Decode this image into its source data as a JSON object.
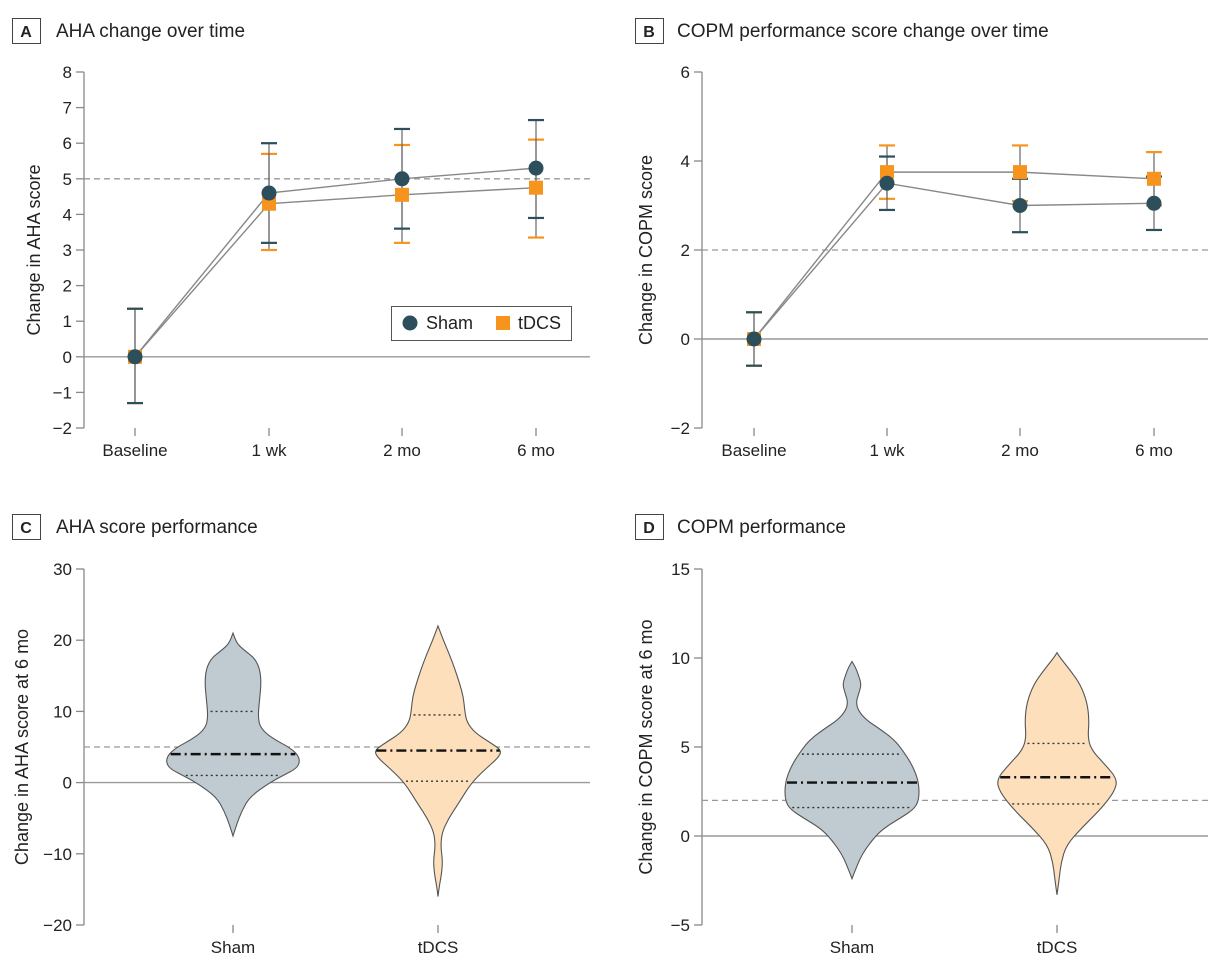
{
  "colors": {
    "sham": "#2d4e5b",
    "tdcs": "#f7941d",
    "sham_violin": "#c0cbd1",
    "tdcs_violin": "#fde0bb",
    "axis": "#888888",
    "line": "#888888"
  },
  "chart_data": [
    {
      "id": "A",
      "letter": "A",
      "title": "AHA change over time",
      "type": "line",
      "ylabel": "Change in AHA score",
      "categories": [
        "Baseline",
        "1 wk",
        "2 mo",
        "6 mo"
      ],
      "ylim": [
        -2,
        8
      ],
      "yticks": [
        -2,
        -1,
        0,
        1,
        2,
        3,
        4,
        5,
        6,
        7,
        8
      ],
      "reference_line": 5,
      "legend": {
        "position": "bottom-right",
        "items": [
          "Sham",
          "tDCS"
        ]
      },
      "series": [
        {
          "name": "Sham",
          "values": [
            0,
            4.6,
            5.0,
            5.3
          ],
          "lower": [
            -1.3,
            3.2,
            3.6,
            3.9
          ],
          "upper": [
            1.35,
            6.0,
            6.4,
            6.65
          ]
        },
        {
          "name": "tDCS",
          "values": [
            0,
            4.3,
            4.55,
            4.75
          ],
          "lower": [
            -1.3,
            3.0,
            3.2,
            3.35
          ],
          "upper": [
            1.35,
            5.7,
            5.95,
            6.1
          ]
        }
      ]
    },
    {
      "id": "B",
      "letter": "B",
      "title": "COPM performance score change over time",
      "type": "line",
      "ylabel": "Change in COPM score",
      "categories": [
        "Baseline",
        "1 wk",
        "2 mo",
        "6 mo"
      ],
      "ylim": [
        -2,
        6
      ],
      "yticks": [
        -2,
        0,
        2,
        4,
        6
      ],
      "reference_line": 2,
      "series": [
        {
          "name": "Sham",
          "values": [
            0,
            3.5,
            3.0,
            3.05
          ],
          "lower": [
            -0.6,
            2.9,
            2.4,
            2.45
          ],
          "upper": [
            0.6,
            4.1,
            3.6,
            3.65
          ]
        },
        {
          "name": "tDCS",
          "values": [
            0,
            3.75,
            3.75,
            3.6
          ],
          "lower": [
            -0.6,
            3.15,
            3.1,
            3.0
          ],
          "upper": [
            0.6,
            4.35,
            4.35,
            4.2
          ]
        }
      ]
    },
    {
      "id": "C",
      "letter": "C",
      "title": "AHA score performance",
      "type": "violin",
      "ylabel": "Change in AHA score at 6 mo",
      "categories": [
        "Sham",
        "tDCS"
      ],
      "ylim": [
        -20,
        30
      ],
      "yticks": [
        -20,
        -10,
        0,
        10,
        20,
        30
      ],
      "reference_line": 5,
      "series": [
        {
          "name": "Sham",
          "min": -7.5,
          "max": 21,
          "q1": 1,
          "median": 4,
          "q3": 10,
          "profile": [
            [
              -7.5,
              0
            ],
            [
              -6,
              0.05
            ],
            [
              -4,
              0.13
            ],
            [
              -2,
              0.25
            ],
            [
              0,
              0.55
            ],
            [
              1,
              0.75
            ],
            [
              2,
              0.95
            ],
            [
              3,
              1.0
            ],
            [
              4,
              0.96
            ],
            [
              5,
              0.83
            ],
            [
              6,
              0.63
            ],
            [
              7,
              0.48
            ],
            [
              8,
              0.4
            ],
            [
              9,
              0.38
            ],
            [
              10,
              0.38
            ],
            [
              12,
              0.4
            ],
            [
              14,
              0.42
            ],
            [
              16,
              0.4
            ],
            [
              17.5,
              0.32
            ],
            [
              18.5,
              0.18
            ],
            [
              19.5,
              0.06
            ],
            [
              21,
              0
            ]
          ]
        },
        {
          "name": "tDCS",
          "min": -16,
          "max": 22,
          "q1": 0.2,
          "median": 4.5,
          "q3": 9.5,
          "profile": [
            [
              -16,
              0
            ],
            [
              -14.5,
              0.02
            ],
            [
              -13,
              0.05
            ],
            [
              -11,
              0.07
            ],
            [
              -9,
              0.04
            ],
            [
              -7,
              0.06
            ],
            [
              -5,
              0.16
            ],
            [
              -3,
              0.3
            ],
            [
              0,
              0.5
            ],
            [
              2,
              0.72
            ],
            [
              3.5,
              0.9
            ],
            [
              4.5,
              0.95
            ],
            [
              5.5,
              0.8
            ],
            [
              7,
              0.55
            ],
            [
              8.5,
              0.43
            ],
            [
              10,
              0.4
            ],
            [
              12,
              0.38
            ],
            [
              14,
              0.32
            ],
            [
              16,
              0.25
            ],
            [
              18,
              0.17
            ],
            [
              20,
              0.08
            ],
            [
              22,
              0
            ]
          ]
        }
      ]
    },
    {
      "id": "D",
      "letter": "D",
      "title": "COPM performance",
      "type": "violin",
      "ylabel": "Change in COPM score at 6 mo",
      "categories": [
        "Sham",
        "tDCS"
      ],
      "ylim": [
        -5,
        15
      ],
      "yticks": [
        -5,
        0,
        5,
        10,
        15
      ],
      "reference_line": 2,
      "series": [
        {
          "name": "Sham",
          "min": -2.4,
          "max": 9.8,
          "q1": 1.6,
          "median": 3.0,
          "q3": 4.6,
          "profile": [
            [
              -2.4,
              0
            ],
            [
              -2,
              0.04
            ],
            [
              -1,
              0.15
            ],
            [
              0,
              0.35
            ],
            [
              0.5,
              0.5
            ],
            [
              1,
              0.72
            ],
            [
              1.5,
              0.92
            ],
            [
              2,
              1.0
            ],
            [
              3,
              1.0
            ],
            [
              4,
              0.9
            ],
            [
              5,
              0.72
            ],
            [
              5.5,
              0.6
            ],
            [
              6,
              0.42
            ],
            [
              6.5,
              0.22
            ],
            [
              7,
              0.1
            ],
            [
              7.5,
              0.06
            ],
            [
              8,
              0.1
            ],
            [
              8.5,
              0.14
            ],
            [
              9,
              0.1
            ],
            [
              9.5,
              0.05
            ],
            [
              9.8,
              0
            ]
          ]
        },
        {
          "name": "tDCS",
          "min": -3.3,
          "max": 10.3,
          "q1": 1.8,
          "median": 3.3,
          "q3": 5.2,
          "profile": [
            [
              -3.3,
              0
            ],
            [
              -2.5,
              0.03
            ],
            [
              -1.5,
              0.06
            ],
            [
              -0.5,
              0.14
            ],
            [
              0.5,
              0.38
            ],
            [
              1.5,
              0.65
            ],
            [
              2.5,
              0.86
            ],
            [
              3.2,
              0.9
            ],
            [
              4,
              0.72
            ],
            [
              4.8,
              0.52
            ],
            [
              5.5,
              0.46
            ],
            [
              6.5,
              0.48
            ],
            [
              7.5,
              0.45
            ],
            [
              8.5,
              0.35
            ],
            [
              9.3,
              0.2
            ],
            [
              10,
              0.05
            ],
            [
              10.3,
              0
            ]
          ]
        }
      ]
    }
  ]
}
